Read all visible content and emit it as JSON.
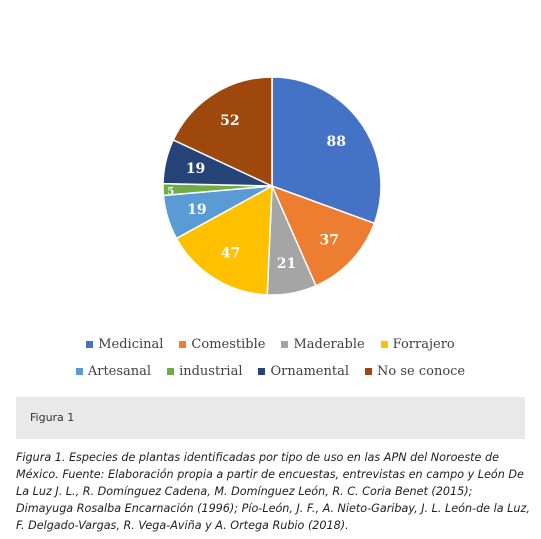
{
  "chart_data": {
    "type": "pie",
    "categories": [
      "Medicinal",
      "Comestible",
      "Maderable",
      "Forrajero",
      "Artesanal",
      "industrial",
      "Ornamental",
      "No se conoce"
    ],
    "values": [
      88,
      37,
      21,
      47,
      19,
      5,
      19,
      52
    ],
    "colors": [
      "#4472c4",
      "#ed7d31",
      "#a5a5a5",
      "#ffc000",
      "#5b9bd5",
      "#70ad47",
      "#264478",
      "#9e480e"
    ],
    "legend_rows": [
      [
        "Medicinal",
        "Comestible",
        "Maderable",
        "Forrajero"
      ],
      [
        "Artesanal",
        "industrial",
        "Ornamental",
        "No se conoce"
      ]
    ],
    "legend_position": "bottom",
    "start_angle": "12 o'clock, clockwise"
  },
  "caption_box": {
    "label": "Figura 1"
  },
  "figure_caption": "Figura 1. Especies de plantas identificadas por tipo de uso en las APN del Noroeste de México. Fuente: Elaboración propia a partir de encuestas, entrevistas en campo y León De La Luz J. L., R. Domínguez Cadena, M. Domínguez León, R. C. Coria Benet (2015); Dimayuga Rosalba Encarnación (1996); Pío-León, J. F., A. Nieto-Garibay, J. L. León-de la Luz, F. Delgado-Vargas, R. Vega-Aviña y A. Ortega Rubio (2018)."
}
